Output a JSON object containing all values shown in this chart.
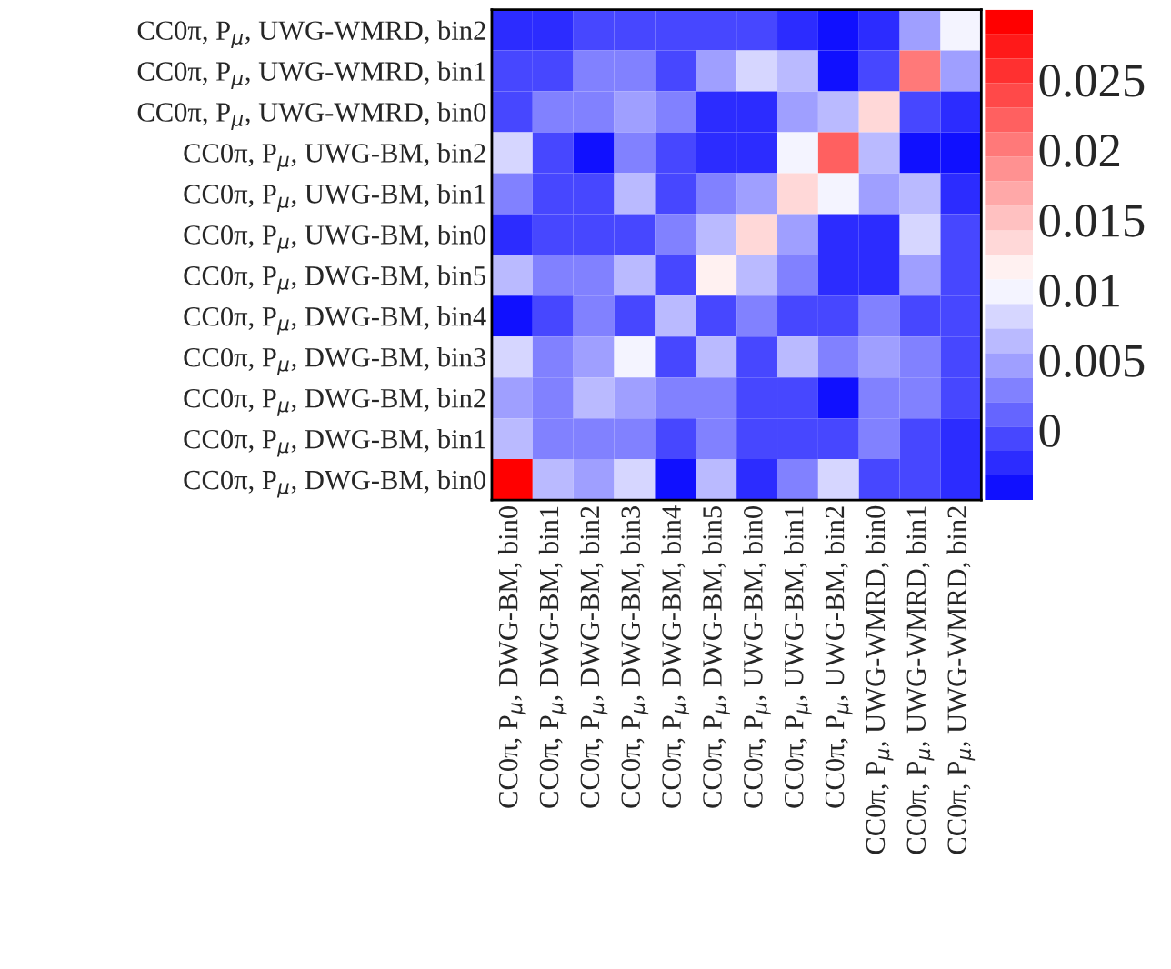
{
  "chart_data": {
    "type": "heatmap",
    "categories": [
      "CC0π, P$_{μ}$, DWG-BM, bin0",
      "CC0π, P$_{μ}$, DWG-BM, bin1",
      "CC0π, P$_{μ}$, DWG-BM, bin2",
      "CC0π, P$_{μ}$, DWG-BM, bin3",
      "CC0π, P$_{μ}$, DWG-BM, bin4",
      "CC0π, P$_{μ}$, DWG-BM, bin5",
      "CC0π, P$_{μ}$, UWG-BM, bin0",
      "CC0π, P$_{μ}$, UWG-BM, bin1",
      "CC0π, P$_{μ}$, UWG-BM, bin2",
      "CC0π, P$_{μ}$, UWG-WMRD, bin0",
      "CC0π, P$_{μ}$, UWG-WMRD, bin1",
      "CC0π, P$_{μ}$, UWG-WMRD, bin2"
    ],
    "y_categories": [
      "CC0π, P$_{μ}$, UWG-WMRD, bin2",
      "CC0π, P$_{μ}$, UWG-WMRD, bin1",
      "CC0π, P$_{μ}$, UWG-WMRD, bin0",
      "CC0π, P$_{μ}$, UWG-BM, bin2",
      "CC0π, P$_{μ}$, UWG-BM, bin1",
      "CC0π, P$_{μ}$, UWG-BM, bin0",
      "CC0π, P$_{μ}$, DWG-BM, bin5",
      "CC0π, P$_{μ}$, DWG-BM, bin4",
      "CC0π, P$_{μ}$, DWG-BM, bin3",
      "CC0π, P$_{μ}$, DWG-BM, bin2",
      "CC0π, P$_{μ}$, DWG-BM, bin1",
      "CC0π, P$_{μ}$, DWG-BM, bin0"
    ],
    "cells": [
      [
        -0.002,
        -0.002,
        -0.001,
        -0.001,
        -0.001,
        -0.001,
        0.0,
        -0.002,
        -0.004,
        -0.002,
        0.004,
        0.0095
      ],
      [
        0.0,
        0.0,
        0.002,
        0.002,
        -0.001,
        0.004,
        0.008,
        0.006,
        -0.004,
        -0.001,
        0.02,
        0.004
      ],
      [
        0.0,
        0.002,
        0.002,
        0.004,
        0.002,
        -0.002,
        -0.002,
        0.004,
        0.006,
        0.014,
        -0.001,
        -0.002
      ],
      [
        0.008,
        0.0,
        -0.004,
        0.002,
        -0.001,
        -0.002,
        -0.002,
        0.0095,
        0.022,
        0.006,
        -0.004,
        -0.004
      ],
      [
        0.002,
        0.0,
        0.0,
        0.006,
        -0.001,
        0.002,
        0.004,
        0.014,
        0.0095,
        0.004,
        0.006,
        -0.002
      ],
      [
        -0.002,
        -0.001,
        -0.001,
        0.0,
        0.002,
        0.006,
        0.014,
        0.004,
        -0.002,
        -0.002,
        0.008,
        0.0
      ],
      [
        0.006,
        0.002,
        0.002,
        0.006,
        -0.001,
        0.012,
        0.006,
        0.002,
        -0.002,
        -0.002,
        0.004,
        -0.001
      ],
      [
        -0.004,
        -0.001,
        0.002,
        -0.001,
        0.006,
        -0.001,
        0.002,
        -0.001,
        -0.001,
        0.002,
        -0.001,
        -0.001
      ],
      [
        0.008,
        0.002,
        0.004,
        0.0095,
        -0.001,
        0.006,
        0.0,
        0.006,
        0.002,
        0.004,
        0.002,
        -0.001
      ],
      [
        0.004,
        0.002,
        0.006,
        0.004,
        0.002,
        0.002,
        -0.001,
        0.0,
        -0.004,
        0.002,
        0.002,
        -0.001
      ],
      [
        0.006,
        0.002,
        0.002,
        0.002,
        -0.001,
        0.002,
        -0.001,
        0.0,
        0.0,
        0.002,
        0.0,
        -0.002
      ],
      [
        0.03,
        0.006,
        0.004,
        0.008,
        -0.004,
        0.006,
        -0.002,
        0.002,
        0.008,
        0.0,
        0.0,
        -0.002
      ]
    ],
    "clim": [
      -0.005,
      0.03
    ],
    "cticks": [
      0,
      0.005,
      0.01,
      0.015,
      0.02,
      0.025
    ]
  }
}
